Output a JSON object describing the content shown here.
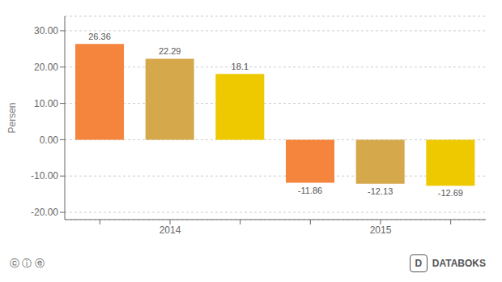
{
  "chart_data": {
    "type": "bar",
    "ylabel": "Persen",
    "categories": [
      null,
      "2014",
      null,
      null,
      "2015",
      null
    ],
    "values": [
      26.36,
      22.29,
      18.1,
      -11.86,
      -12.13,
      -12.69
    ],
    "colors": [
      "#F5843C",
      "#D4A84B",
      "#EEC900",
      "#F5843C",
      "#D4A84B",
      "#EEC900"
    ],
    "ylim": [
      -22,
      34
    ],
    "yticks": [
      {
        "value": -20.0,
        "label": "-20.00"
      },
      {
        "value": -10.0,
        "label": "-10.00"
      },
      {
        "value": 0.0,
        "label": "0.00"
      },
      {
        "value": 10.0,
        "label": "10.00"
      },
      {
        "value": 20.0,
        "label": "20.00"
      },
      {
        "value": 30.0,
        "label": "30.00"
      }
    ],
    "grid": true,
    "data_labels": true,
    "annotations": [
      "ⓒ ⓘ ⓔ",
      "D",
      "DATABOKS"
    ]
  }
}
